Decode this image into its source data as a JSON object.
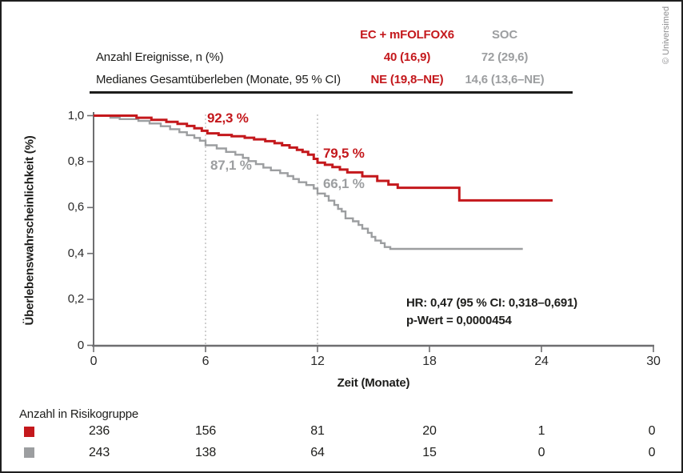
{
  "copyright": "© Universimed",
  "colors": {
    "accent_red": "#c4181c",
    "accent_gray": "#9c9ea0",
    "text_black": "#1d1d1b",
    "axis_line": "#6e6e70",
    "reference_line": "#b2b2b2"
  },
  "summary_table": {
    "columns": [
      {
        "label": "EC + mFOLFOX6",
        "color": "#c4181c"
      },
      {
        "label": "SOC",
        "color": "#9c9ea0"
      }
    ],
    "rows": [
      {
        "label": "Anzahl Ereignisse, n (%)",
        "ec": "40 (16,9)",
        "soc": "72 (29,6)"
      },
      {
        "label": "Medianes Gesamtüberleben (Monate, 95 % CI)",
        "ec": "NE (19,8–NE)",
        "soc": "14,6 (13,6–NE)"
      }
    ]
  },
  "chart_data": {
    "type": "line",
    "subtype": "kaplan-meier-step",
    "xlabel": "Zeit (Monate)",
    "ylabel": "Überlebenswahrscheinlichkeit (%)",
    "xlim": [
      0,
      30
    ],
    "ylim": [
      0,
      1.0
    ],
    "x_ticks": [
      0,
      6,
      12,
      18,
      24,
      30
    ],
    "x_tick_labels": [
      "0",
      "6",
      "12",
      "18",
      "24",
      "30"
    ],
    "y_ticks": [
      1.0,
      0.8,
      0.6,
      0.4,
      0.2,
      0
    ],
    "y_tick_labels": [
      "1,0",
      "0,8",
      "0,6",
      "0,4",
      "0,2",
      "0"
    ],
    "grid": false,
    "reference_lines_x": [
      6,
      12
    ],
    "labels": {
      "ec_6mo": "92,3 %",
      "soc_6mo": "87,1 %",
      "ec_12mo": "79,5 %",
      "soc_12mo": "66,1 %"
    },
    "stats": {
      "hr_line": "HR: 0,47 (95 % CI: 0,318–0,691)",
      "p_line": "p-Wert = 0,0000454"
    },
    "series": [
      {
        "name": "EC + mFOLFOX6",
        "color": "#c4181c",
        "end_t": 24.6,
        "points": [
          [
            0,
            1.0
          ],
          [
            2.3,
            0.991
          ],
          [
            3.1,
            0.982
          ],
          [
            3.9,
            0.973
          ],
          [
            4.5,
            0.964
          ],
          [
            5.0,
            0.955
          ],
          [
            5.4,
            0.945
          ],
          [
            5.8,
            0.934
          ],
          [
            6.1,
            0.923
          ],
          [
            6.7,
            0.916
          ],
          [
            7.4,
            0.91
          ],
          [
            8.1,
            0.904
          ],
          [
            8.6,
            0.897
          ],
          [
            9.2,
            0.889
          ],
          [
            9.7,
            0.88
          ],
          [
            10.1,
            0.871
          ],
          [
            10.5,
            0.861
          ],
          [
            10.9,
            0.851
          ],
          [
            11.2,
            0.842
          ],
          [
            11.5,
            0.83
          ],
          [
            11.8,
            0.812
          ],
          [
            12.0,
            0.795
          ],
          [
            12.4,
            0.786
          ],
          [
            12.8,
            0.776
          ],
          [
            13.2,
            0.765
          ],
          [
            13.6,
            0.753
          ],
          [
            14.4,
            0.736
          ],
          [
            15.2,
            0.716
          ],
          [
            15.8,
            0.7
          ],
          [
            16.3,
            0.686
          ],
          [
            19.6,
            0.631
          ]
        ]
      },
      {
        "name": "SOC",
        "color": "#9c9ea0",
        "end_t": 23.0,
        "points": [
          [
            0,
            1.0
          ],
          [
            0.9,
            0.991
          ],
          [
            1.4,
            0.985
          ],
          [
            2.4,
            0.977
          ],
          [
            3.0,
            0.966
          ],
          [
            3.6,
            0.954
          ],
          [
            4.1,
            0.941
          ],
          [
            4.6,
            0.928
          ],
          [
            5.0,
            0.915
          ],
          [
            5.4,
            0.903
          ],
          [
            5.7,
            0.891
          ],
          [
            6.0,
            0.871
          ],
          [
            6.6,
            0.857
          ],
          [
            7.1,
            0.842
          ],
          [
            7.6,
            0.83
          ],
          [
            8.0,
            0.816
          ],
          [
            8.3,
            0.802
          ],
          [
            8.7,
            0.789
          ],
          [
            9.1,
            0.774
          ],
          [
            9.5,
            0.762
          ],
          [
            10.0,
            0.75
          ],
          [
            10.4,
            0.737
          ],
          [
            10.7,
            0.724
          ],
          [
            11.0,
            0.71
          ],
          [
            11.4,
            0.698
          ],
          [
            11.8,
            0.683
          ],
          [
            12.0,
            0.661
          ],
          [
            12.4,
            0.65
          ],
          [
            12.6,
            0.63
          ],
          [
            12.9,
            0.611
          ],
          [
            13.1,
            0.594
          ],
          [
            13.3,
            0.583
          ],
          [
            13.5,
            0.553
          ],
          [
            13.9,
            0.54
          ],
          [
            14.2,
            0.524
          ],
          [
            14.4,
            0.508
          ],
          [
            14.7,
            0.49
          ],
          [
            14.9,
            0.472
          ],
          [
            15.1,
            0.456
          ],
          [
            15.4,
            0.445
          ],
          [
            15.6,
            0.428
          ],
          [
            15.9,
            0.42
          ]
        ]
      }
    ]
  },
  "risk_table": {
    "title": "Anzahl in Risikogruppe",
    "rows": [
      {
        "series": "EC + mFOLFOX6",
        "color": "#c4181c",
        "values": [
          "236",
          "156",
          "81",
          "20",
          "1",
          "0"
        ]
      },
      {
        "series": "SOC",
        "color": "#9c9ea0",
        "values": [
          "243",
          "138",
          "64",
          "15",
          "0",
          "0"
        ]
      }
    ]
  }
}
